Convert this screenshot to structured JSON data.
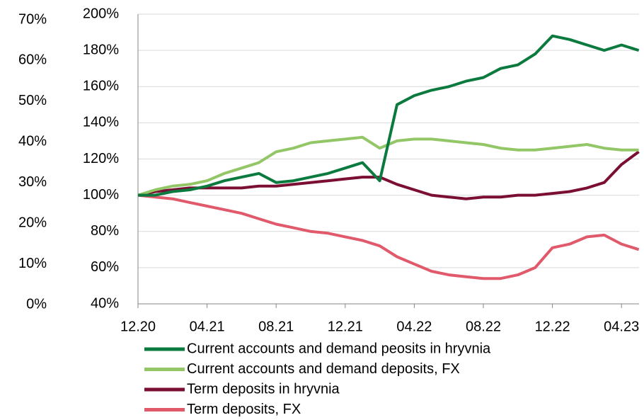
{
  "chart_data": {
    "type": "line",
    "categories": [
      "12.20",
      null,
      null,
      null,
      "04.21",
      null,
      null,
      null,
      "08.21",
      null,
      null,
      null,
      "12.21",
      null,
      null,
      null,
      "04.22",
      null,
      null,
      null,
      "08.22",
      null,
      null,
      null,
      "12.22",
      null,
      null,
      null,
      "04.23",
      null
    ],
    "ylim": [
      40,
      200
    ],
    "yticks": [
      {
        "value": 40,
        "label": "40%"
      },
      {
        "value": 60,
        "label": "60%"
      },
      {
        "value": 80,
        "label": "80%"
      },
      {
        "value": 100,
        "label": "100%"
      },
      {
        "value": 120,
        "label": "120%"
      },
      {
        "value": 140,
        "label": "140%"
      },
      {
        "value": 160,
        "label": "160%"
      },
      {
        "value": 180,
        "label": "180%"
      },
      {
        "value": 200,
        "label": "200%"
      }
    ],
    "y2lim": [
      0,
      70
    ],
    "y2ticks": [
      {
        "value": 0,
        "label": "0%"
      },
      {
        "value": 10,
        "label": "10%"
      },
      {
        "value": 20,
        "label": "20%"
      },
      {
        "value": 30,
        "label": "30%"
      },
      {
        "value": 40,
        "label": "40%"
      },
      {
        "value": 50,
        "label": "50%"
      },
      {
        "value": 60,
        "label": "60%"
      },
      {
        "value": 70,
        "label": "70%"
      }
    ],
    "grid": true,
    "legend": "bottom",
    "series": [
      {
        "name": "Current accounts and demand peosits in hryvnia",
        "color": "#0b7a3e",
        "values": [
          100,
          100,
          102,
          103,
          105,
          108,
          110,
          112,
          107,
          108,
          110,
          112,
          115,
          118,
          108,
          150,
          155,
          158,
          160,
          163,
          165,
          170,
          172,
          178,
          188,
          186,
          183,
          180,
          183,
          180
        ]
      },
      {
        "name": "Current accounts and demand deposits, FX",
        "color": "#92c667",
        "values": [
          100,
          103,
          105,
          106,
          108,
          112,
          115,
          118,
          124,
          126,
          129,
          130,
          131,
          132,
          126,
          130,
          131,
          131,
          130,
          129,
          128,
          126,
          125,
          125,
          126,
          127,
          128,
          126,
          125,
          125
        ]
      },
      {
        "name": "Term deposits in hryvnia",
        "color": "#7b0f33",
        "values": [
          100,
          102,
          103,
          104,
          104,
          104,
          104,
          105,
          105,
          106,
          107,
          108,
          109,
          110,
          110,
          106,
          103,
          100,
          99,
          98,
          99,
          99,
          100,
          100,
          101,
          102,
          104,
          107,
          117,
          124
        ]
      },
      {
        "name": "Term deposits, FX",
        "color": "#e05a6b",
        "values": [
          100,
          99,
          98,
          96,
          94,
          92,
          90,
          87,
          84,
          82,
          80,
          79,
          77,
          75,
          72,
          66,
          62,
          58,
          56,
          55,
          54,
          54,
          56,
          60,
          71,
          73,
          77,
          78,
          73,
          70
        ]
      }
    ]
  }
}
